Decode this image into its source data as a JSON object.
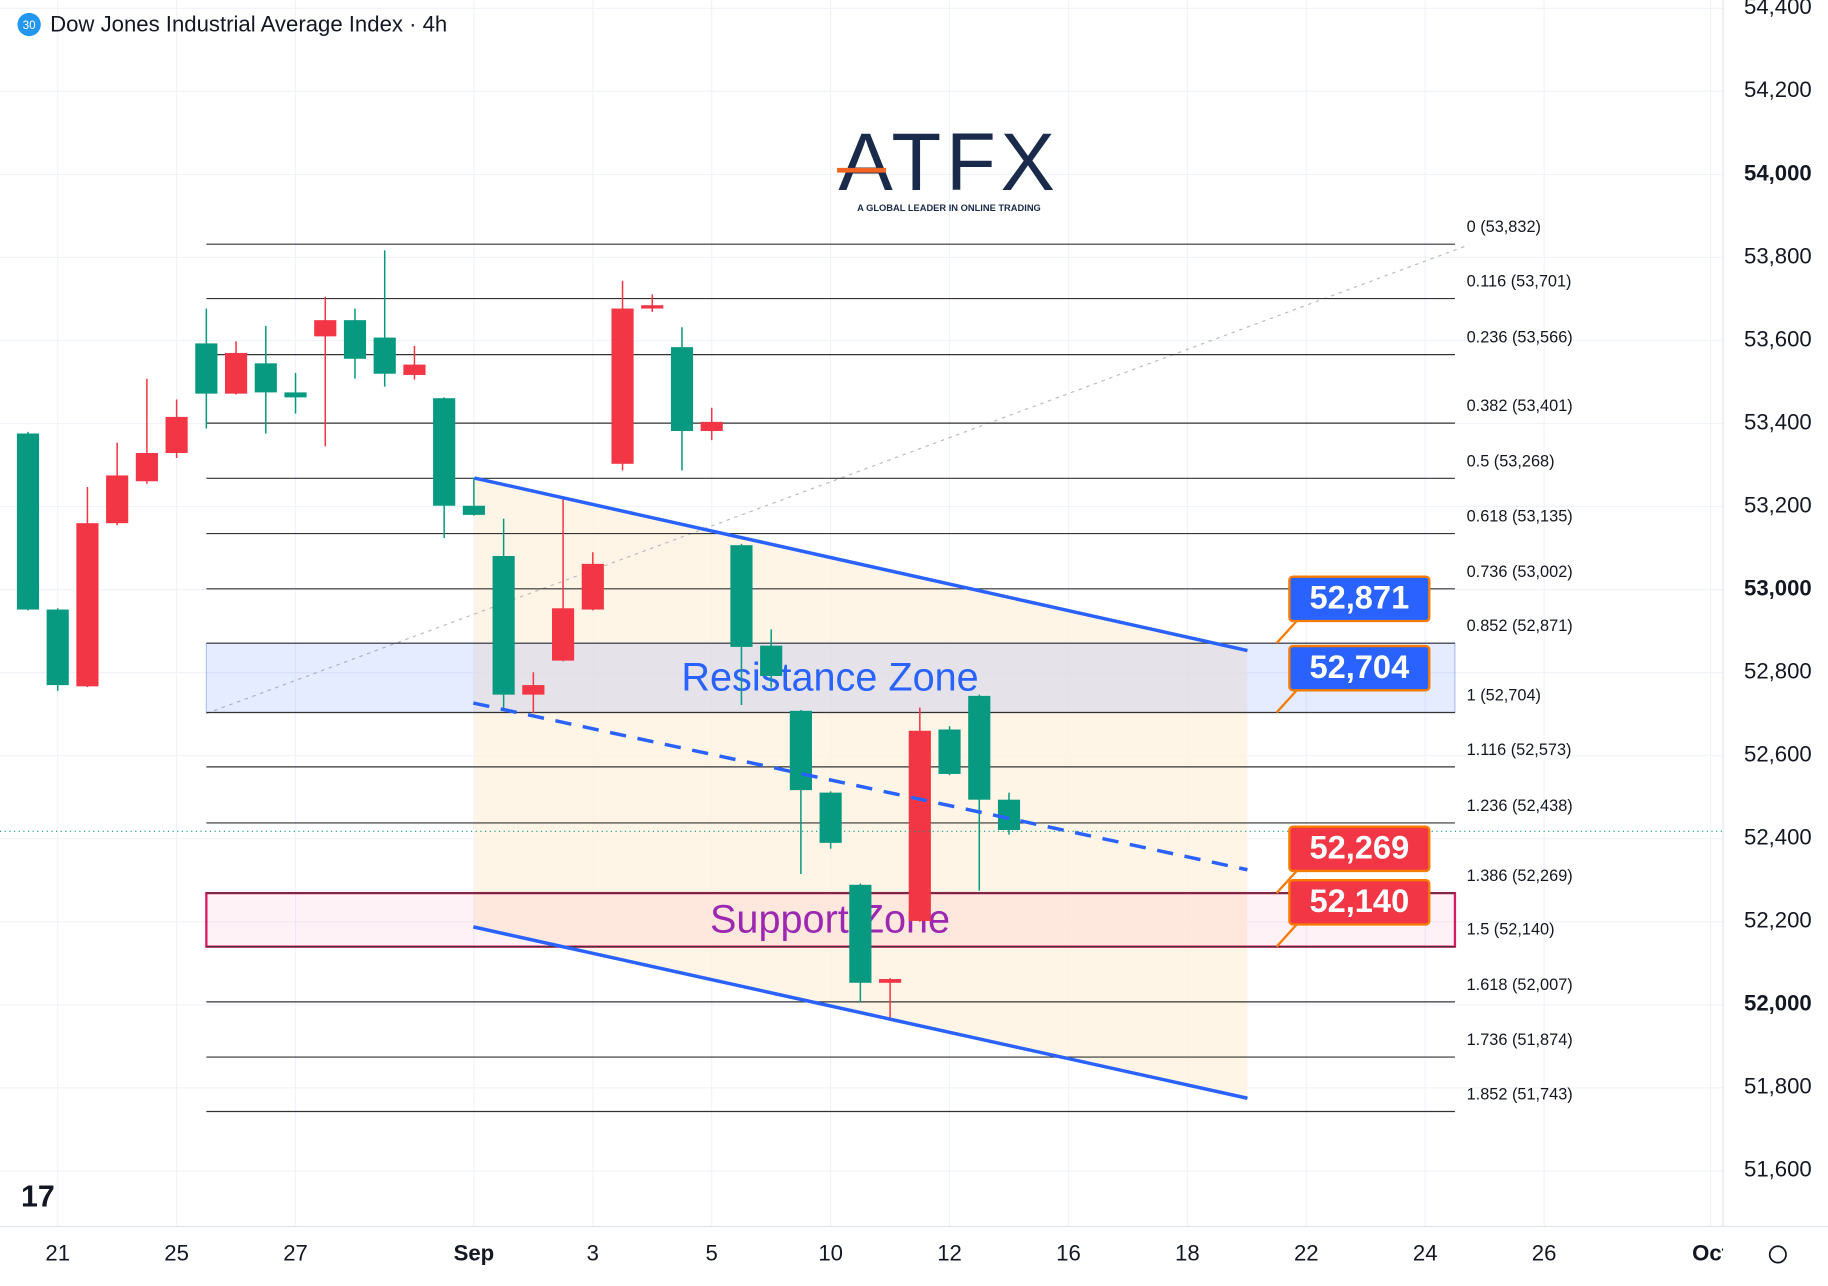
{
  "chart_data": {
    "type": "candlestick",
    "title": "Dow Jones Industrial Average Index · 4h",
    "badge": "30",
    "brand": "ATFX",
    "brand_tagline": "A GLOBAL LEADER IN ONLINE TRADING",
    "up_color": "#089981",
    "down_color": "#f23645",
    "open": [
      52952,
      52770,
      53160,
      53275,
      53329,
      53416,
      53472,
      53570,
      53475,
      53463,
      53649,
      53556,
      53520,
      53542,
      53202,
      53180,
      52747,
      52770,
      52955,
      53062,
      53677,
      53685,
      53382,
      53404,
      52862,
      52792,
      52517,
      52390,
      52053,
      52062,
      52660,
      52556,
      52494,
      52421
    ],
    "high": [
      53380,
      52955,
      53247,
      53354,
      53508,
      53458,
      53677,
      53598,
      53635,
      53522,
      53705,
      53677,
      53817,
      53587,
      53463,
      53270,
      53171,
      52801,
      53222,
      53090,
      53744,
      53711,
      53632,
      53438,
      53110,
      52904,
      52710,
      52514,
      52292,
      52064,
      52716,
      52671,
      52747,
      52511
    ],
    "low": [
      52950,
      52756,
      52765,
      53155,
      53255,
      53317,
      53388,
      53470,
      53376,
      53424,
      53345,
      53508,
      53489,
      53506,
      53124,
      53178,
      52713,
      52702,
      52827,
      52950,
      53287,
      53669,
      53287,
      53360,
      52722,
      52764,
      52315,
      52376,
      52006,
      51969,
      52200,
      52553,
      52275,
      52410
    ],
    "close": [
      53376,
      52952,
      52767,
      53160,
      53261,
      53329,
      53593,
      53472,
      53545,
      53475,
      53610,
      53649,
      53607,
      53517,
      53461,
      53202,
      53081,
      52747,
      52829,
      52952,
      53303,
      53677,
      53584,
      53382,
      53107,
      52865,
      52708,
      52511,
      52289,
      52053,
      52202,
      52663,
      52744,
      52494
    ],
    "xlim": [
      -0.941,
      57.02
    ],
    "xticks": [
      {
        "value": 1,
        "label": "21"
      },
      {
        "value": 5,
        "label": "25"
      },
      {
        "value": 9,
        "label": "27"
      },
      {
        "value": 15,
        "label": "Sep"
      },
      {
        "value": 19,
        "label": "3"
      },
      {
        "value": 23,
        "label": "5"
      },
      {
        "value": 27,
        "label": "10"
      },
      {
        "value": 31,
        "label": "12"
      },
      {
        "value": 35,
        "label": "16"
      },
      {
        "value": 39,
        "label": "18"
      },
      {
        "value": 43,
        "label": "22"
      },
      {
        "value": 47,
        "label": "24"
      },
      {
        "value": 51,
        "label": "26"
      },
      {
        "value": 56.6,
        "label": "Oct"
      }
    ],
    "ylim": [
      51466,
      54420
    ],
    "yticks": [
      {
        "value": 51600,
        "label": "51,600"
      },
      {
        "value": 51800,
        "label": "51,800"
      },
      {
        "value": 52000,
        "label": "52,000"
      },
      {
        "value": 52200,
        "label": "52,200"
      },
      {
        "value": 52400,
        "label": "52,400"
      },
      {
        "value": 52600,
        "label": "52,600"
      },
      {
        "value": 52800,
        "label": "52,800"
      },
      {
        "value": 53000,
        "label": "53,000"
      },
      {
        "value": 53200,
        "label": "53,200"
      },
      {
        "value": 53400,
        "label": "53,400"
      },
      {
        "value": 53600,
        "label": "53,600"
      },
      {
        "value": 53800,
        "label": "53,800"
      },
      {
        "value": 54000,
        "label": "54,000"
      },
      {
        "value": 54200,
        "label": "54,200"
      },
      {
        "value": 54400,
        "label": "54,400"
      }
    ],
    "fib_levels": [
      {
        "price": 53832,
        "label": "0 (53,832)"
      },
      {
        "price": 53701,
        "label": "0.116 (53,701)"
      },
      {
        "price": 53566,
        "label": "0.236 (53,566)"
      },
      {
        "price": 53401,
        "label": "0.382 (53,401)"
      },
      {
        "price": 53268,
        "label": "0.5 (53,268)"
      },
      {
        "price": 53135,
        "label": "0.618 (53,135)"
      },
      {
        "price": 53002,
        "label": "0.736 (53,002)"
      },
      {
        "price": 52871,
        "label": "0.852 (52,871)"
      },
      {
        "price": 52704,
        "label": "1 (52,704)"
      },
      {
        "price": 52573,
        "label": "1.116 (52,573)"
      },
      {
        "price": 52438,
        "label": "1.236 (52,438)"
      },
      {
        "price": 52269,
        "label": "1.386 (52,269)"
      },
      {
        "price": 52140,
        "label": "1.5 (52,140)"
      },
      {
        "price": 52007,
        "label": "1.618 (52,007)"
      },
      {
        "price": 51874,
        "label": "1.736 (51,874)"
      },
      {
        "price": 51743,
        "label": "1.852 (51,743)"
      }
    ],
    "zones": [
      {
        "name": "Resistance Zone",
        "top": 52871,
        "bottom": 52704,
        "color": "#2962ff"
      },
      {
        "name": "Support Zone",
        "top": 52269,
        "bottom": 52140,
        "color": "#9c27b0"
      }
    ],
    "price_tags": [
      {
        "value": 52871,
        "label": "52,871",
        "color": "#2962ff"
      },
      {
        "value": 52704,
        "label": "52,704",
        "color": "#2962ff"
      },
      {
        "value": 52140,
        "label": "52,140",
        "color": "#f23645"
      },
      {
        "value": 52269,
        "label": "52,269",
        "color": "#f23645"
      }
    ]
  }
}
